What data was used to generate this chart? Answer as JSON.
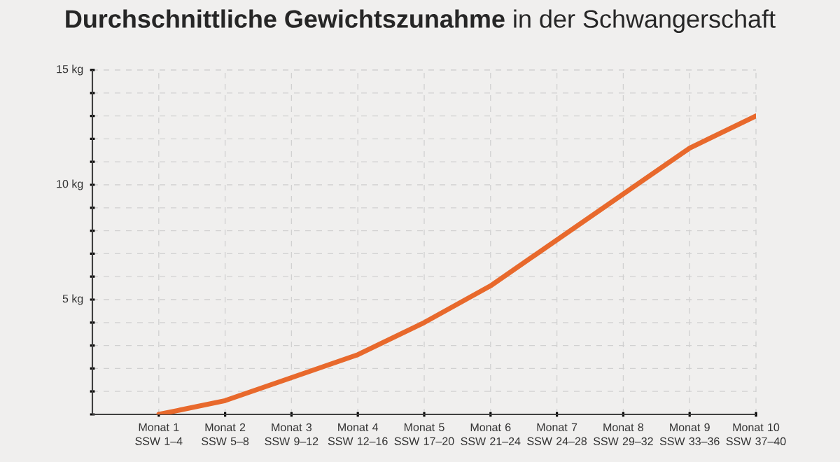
{
  "chart_data": {
    "type": "line",
    "title": "**Durchschnittliche Gewichtszunahme** in der Schwangerschaft",
    "categories": [
      "Monat 1 SSW 1–4",
      "Monat 2 SSW 5–8",
      "Monat 3 SSW 9–12",
      "Monat 4 SSW 12–16",
      "Monat 5 SSW 17–20",
      "Monat 6 SSW 21–24",
      "Monat 7 SSW 24–28",
      "Monat 8 SSW 29–32",
      "Monat 9 SSW 33–36",
      "Monat 10 SSW 37–40"
    ],
    "series": [
      {
        "color": "#e8692c",
        "values": [
          0,
          0.6,
          1.6,
          2.6,
          4.0,
          5.6,
          7.6,
          9.6,
          11.6,
          13.0
        ]
      }
    ],
    "ylim": [
      0,
      15
    ],
    "yticks": [
      {
        "value": 0,
        "label": null
      },
      {
        "value": 1,
        "label": null
      },
      {
        "value": 2,
        "label": null
      },
      {
        "value": 3,
        "label": null
      },
      {
        "value": 4,
        "label": null
      },
      {
        "value": 5,
        "label": "5 kg"
      },
      {
        "value": 6,
        "label": null
      },
      {
        "value": 7,
        "label": null
      },
      {
        "value": 8,
        "label": null
      },
      {
        "value": 9,
        "label": null
      },
      {
        "value": 10,
        "label": "10 kg"
      },
      {
        "value": 11,
        "label": null
      },
      {
        "value": 12,
        "label": null
      },
      {
        "value": 13,
        "label": null
      },
      {
        "value": 14,
        "label": null
      },
      {
        "value": 15,
        "label": "15 kg"
      }
    ],
    "grid": true,
    "marker": "none",
    "line_style": "solid"
  }
}
